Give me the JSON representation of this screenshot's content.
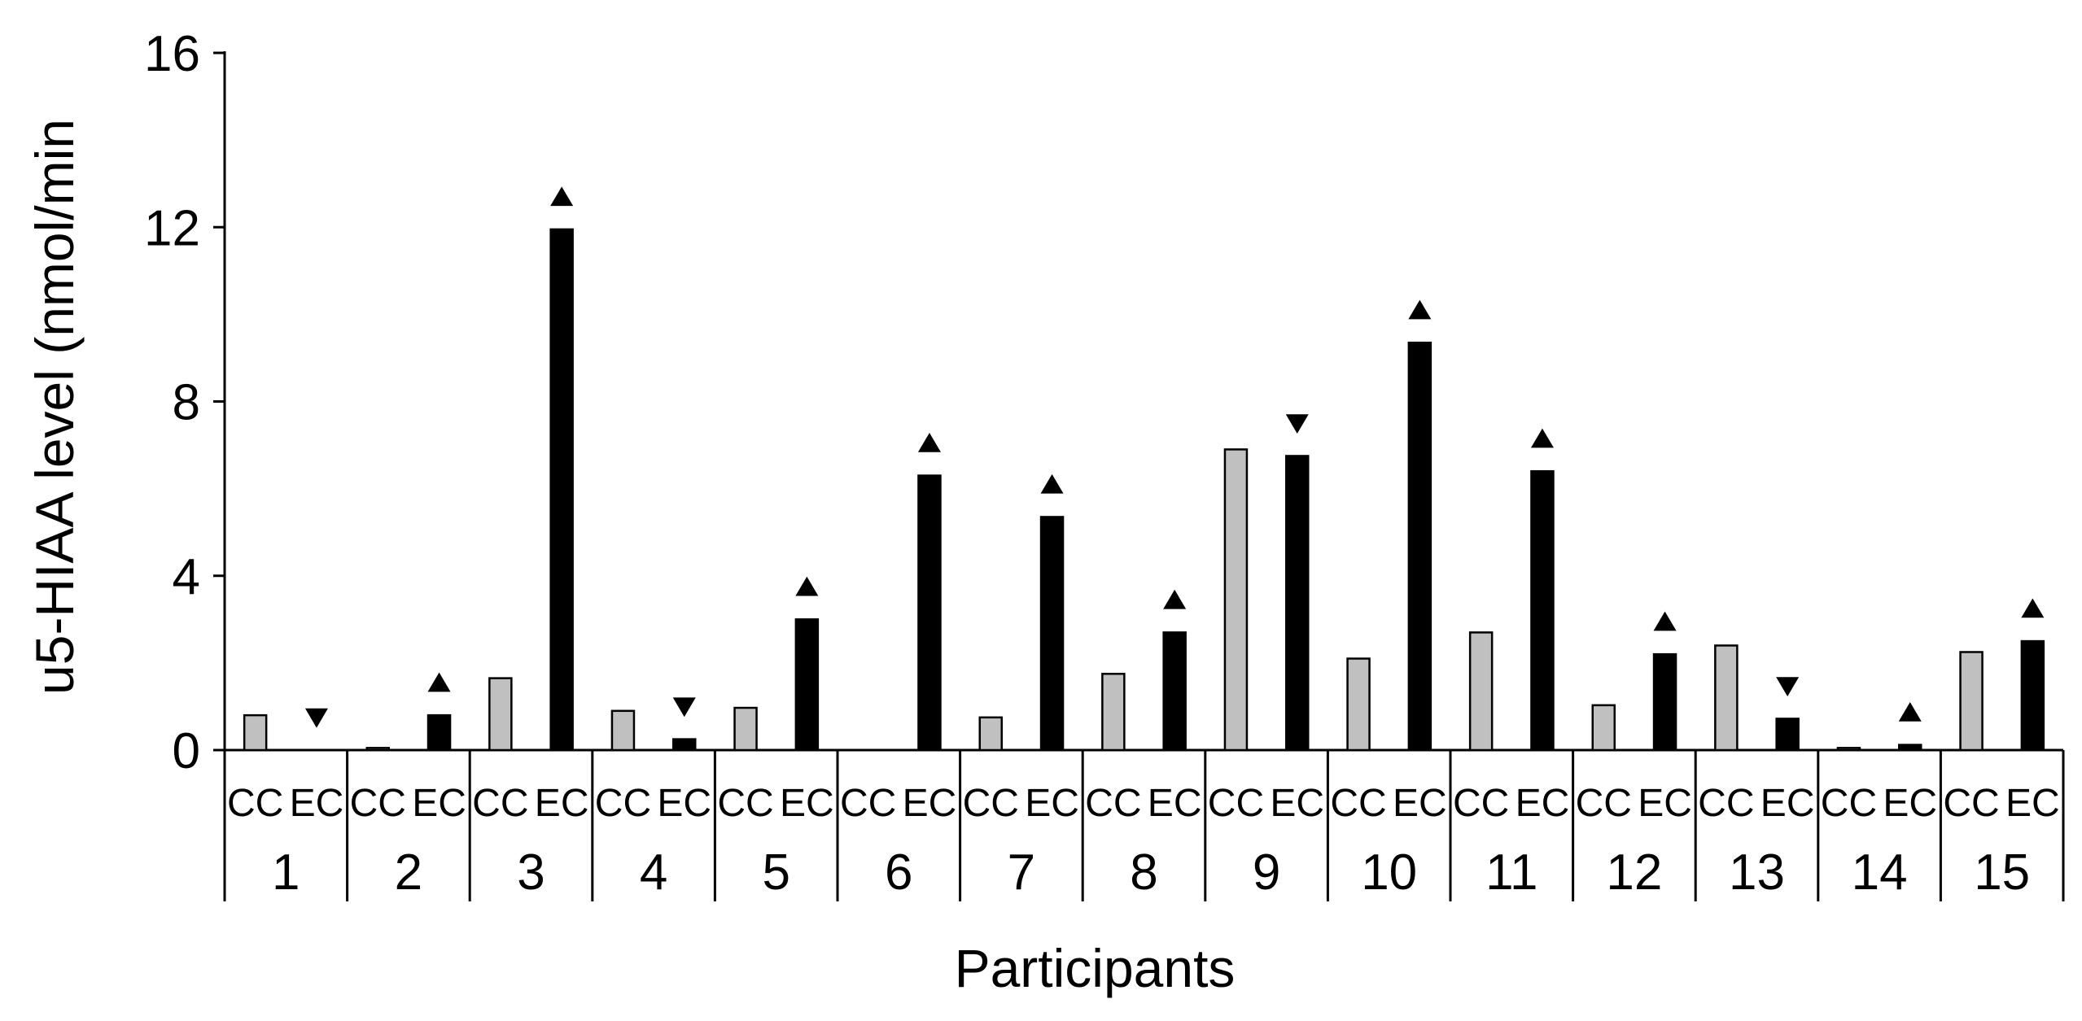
{
  "chart_data": {
    "type": "bar",
    "title": "",
    "xlabel": "Participants",
    "ylabel": "u5-HIAA level (nmol/min",
    "ylim": [
      0,
      16
    ],
    "yticks": [
      0,
      4,
      8,
      12,
      16
    ],
    "participants": [
      "1",
      "2",
      "3",
      "4",
      "5",
      "6",
      "7",
      "8",
      "9",
      "10",
      "11",
      "12",
      "13",
      "14",
      "15"
    ],
    "subgroup_labels": [
      "CC",
      "EC"
    ],
    "series": [
      {
        "key": "CC",
        "values": [
          0.8,
          0.05,
          1.65,
          0.9,
          0.97,
          0,
          0.75,
          1.75,
          6.9,
          2.1,
          2.7,
          1.03,
          2.4,
          0.05,
          2.25
        ]
      },
      {
        "key": "EC",
        "values": [
          0,
          0.8,
          11.95,
          0.25,
          3.0,
          6.3,
          5.35,
          2.7,
          6.75,
          9.35,
          6.4,
          2.2,
          0.72,
          0.12,
          2.5
        ]
      }
    ],
    "change_markers": [
      "down",
      "up",
      "up",
      "down",
      "up",
      "up",
      "up",
      "up",
      "down",
      "up",
      "up",
      "up",
      "down",
      "up",
      "up"
    ],
    "colors": {
      "cc_fill": "#c0c0c0",
      "ec_fill": "#000000",
      "axis": "#000000"
    }
  }
}
